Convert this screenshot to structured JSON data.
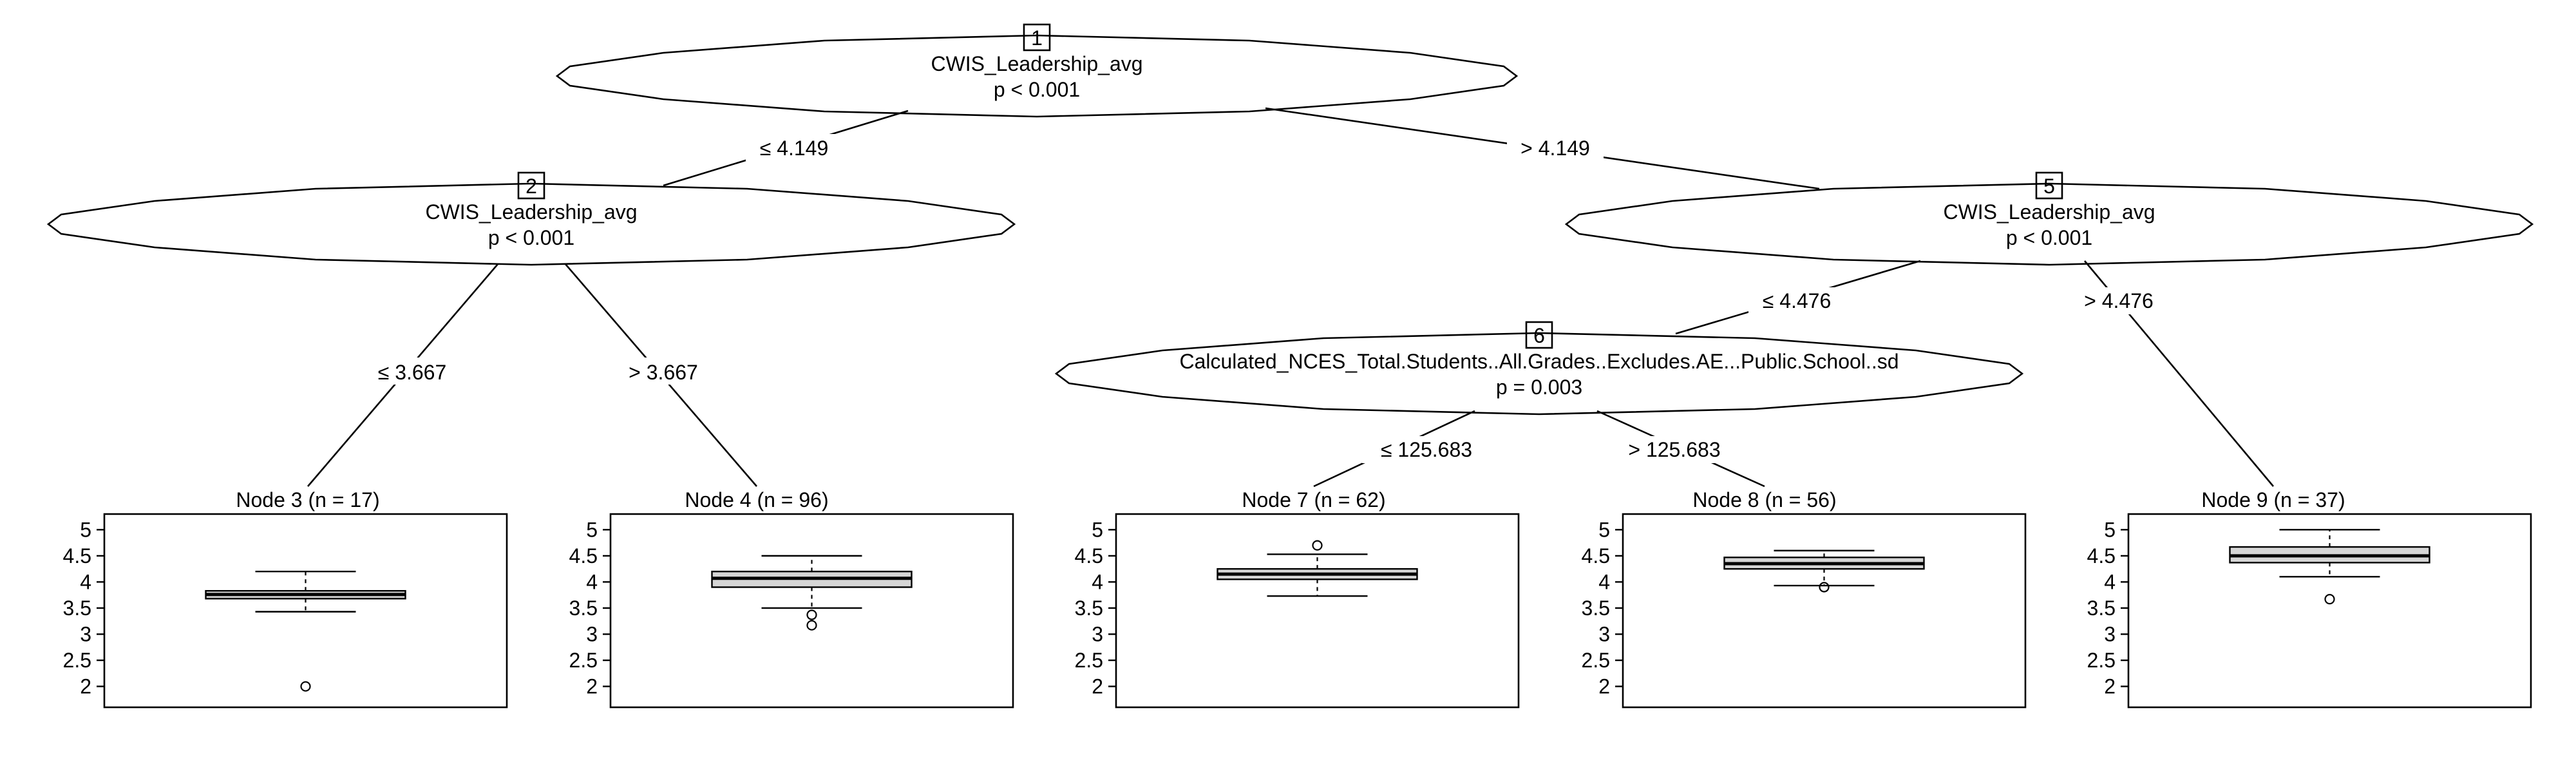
{
  "inner_nodes": [
    {
      "id": "1",
      "variable": "CWIS_Leadership_avg",
      "p": "p < 0.001"
    },
    {
      "id": "2",
      "variable": "CWIS_Leadership_avg",
      "p": "p < 0.001"
    },
    {
      "id": "5",
      "variable": "CWIS_Leadership_avg",
      "p": "p < 0.001"
    },
    {
      "id": "6",
      "variable": "Calculated_NCES_Total.Students..All.Grades..Excludes.AE...Public.School..sd",
      "p": "p = 0.003"
    }
  ],
  "edges": [
    {
      "from": "1",
      "to": "2",
      "label": "≤ 4.149"
    },
    {
      "from": "1",
      "to": "5",
      "label": "> 4.149"
    },
    {
      "from": "2",
      "to": "3",
      "label": "≤ 3.667"
    },
    {
      "from": "2",
      "to": "4",
      "label": "> 3.667"
    },
    {
      "from": "5",
      "to": "6",
      "label": "≤ 4.476"
    },
    {
      "from": "5",
      "to": "9",
      "label": "> 4.476"
    },
    {
      "from": "6",
      "to": "7",
      "label": "≤ 125.683"
    },
    {
      "from": "6",
      "to": "8",
      "label": "> 125.683"
    }
  ],
  "terminal_nodes": [
    {
      "id": "3",
      "title": "Node 3 (n = 17)"
    },
    {
      "id": "4",
      "title": "Node 4 (n = 96)"
    },
    {
      "id": "7",
      "title": "Node 7 (n = 62)"
    },
    {
      "id": "8",
      "title": "Node 8 (n = 56)"
    },
    {
      "id": "9",
      "title": "Node 9 (n = 37)"
    }
  ],
  "chart_data": {
    "type": "boxplot",
    "y_ticks": [
      "2",
      "2.5",
      "3",
      "3.5",
      "4",
      "4.5",
      "5"
    ],
    "ylim": [
      1.6,
      5.3
    ],
    "boxes": [
      {
        "node": "3",
        "n": 17,
        "whisker_low": 3.43,
        "q1": 3.68,
        "median": 3.76,
        "q3": 3.83,
        "whisker_high": 4.2,
        "outliers": [
          2.0
        ]
      },
      {
        "node": "4",
        "n": 96,
        "whisker_low": 3.5,
        "q1": 3.9,
        "median": 4.07,
        "q3": 4.2,
        "whisker_high": 4.5,
        "outliers": [
          3.37,
          3.17
        ]
      },
      {
        "node": "7",
        "n": 62,
        "whisker_low": 3.73,
        "q1": 4.05,
        "median": 4.15,
        "q3": 4.25,
        "whisker_high": 4.53,
        "outliers": [
          4.7
        ]
      },
      {
        "node": "8",
        "n": 56,
        "whisker_low": 3.93,
        "q1": 4.25,
        "median": 4.35,
        "q3": 4.47,
        "whisker_high": 4.6,
        "outliers": [
          3.9
        ]
      },
      {
        "node": "9",
        "n": 37,
        "whisker_low": 4.1,
        "q1": 4.37,
        "median": 4.5,
        "q3": 4.67,
        "whisker_high": 5.0,
        "outliers": [
          3.67
        ]
      }
    ]
  }
}
